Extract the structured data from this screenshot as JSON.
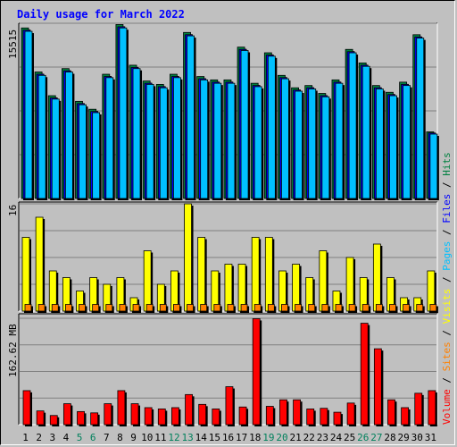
{
  "chart_data": {
    "type": "bar",
    "title": "Daily usage for March 2022",
    "categories": [
      "1",
      "2",
      "3",
      "4",
      "5",
      "6",
      "7",
      "8",
      "9",
      "10",
      "11",
      "12",
      "13",
      "14",
      "15",
      "16",
      "17",
      "18",
      "19",
      "20",
      "21",
      "22",
      "23",
      "24",
      "25",
      "26",
      "27",
      "28",
      "29",
      "30",
      "31"
    ],
    "weekend_days": [
      "5",
      "6",
      "12",
      "13",
      "19",
      "20",
      "26",
      "27"
    ],
    "grid": true,
    "panels": [
      {
        "name": "hits-files-pages",
        "max_label": "15515",
        "ylim": [
          0,
          15515
        ],
        "series": [
          {
            "name": "Hits",
            "color": "#008040",
            "values": [
              15100,
              11200,
              9100,
              11500,
              8600,
              7900,
              11000,
              15400,
              11800,
              10400,
              10100,
              11000,
              14700,
              10800,
              10500,
              10500,
              13400,
              10200,
              12900,
              10900,
              9800,
              10000,
              9300,
              10500,
              13200,
              12000,
              10000,
              9400,
              10300,
              14500,
              5900
            ]
          },
          {
            "name": "Files",
            "color": "#0000ff",
            "values": [
              14900,
              11000,
              8900,
              11300,
              8400,
              7700,
              10800,
              15200,
              11600,
              10200,
              9900,
              10800,
              14500,
              10600,
              10300,
              10300,
              13200,
              10000,
              12700,
              10700,
              9600,
              9800,
              9100,
              10300,
              13000,
              11800,
              9800,
              9200,
              10100,
              14300,
              5800
            ]
          },
          {
            "name": "Pages",
            "color": "#00c0ff",
            "values": [
              14800,
              10900,
              8800,
              11200,
              8300,
              7600,
              10700,
              15100,
              11500,
              10100,
              9800,
              10700,
              14400,
              10500,
              10200,
              10200,
              13100,
              9900,
              12600,
              10600,
              9500,
              9700,
              9000,
              10200,
              12900,
              11700,
              9700,
              9100,
              10000,
              14200,
              5700
            ]
          }
        ]
      },
      {
        "name": "visits-sites",
        "max_label": "16",
        "ylim": [
          0,
          16
        ],
        "series": [
          {
            "name": "Visits",
            "color": "#ffff00",
            "values": [
              11,
              14,
              6,
              5,
              3,
              5,
              4,
              5,
              2,
              9,
              4,
              6,
              16,
              11,
              6,
              7,
              7,
              11,
              11,
              6,
              7,
              5,
              9,
              3,
              8,
              5,
              10,
              5,
              2,
              2,
              6
            ]
          },
          {
            "name": "Sites",
            "color": "#ff8000",
            "values": [
              1,
              1,
              1,
              1,
              1,
              1,
              1,
              1,
              1,
              1,
              1,
              1,
              1,
              1,
              1,
              1,
              1,
              1,
              1,
              1,
              1,
              1,
              1,
              1,
              1,
              1,
              1,
              1,
              1,
              1,
              1
            ]
          }
        ]
      },
      {
        "name": "volume",
        "max_label": "162.62 MB",
        "ylim": [
          0,
          162.62
        ],
        "unit": "MB",
        "series": [
          {
            "name": "Volume",
            "color": "#ff0000",
            "values": [
              52,
              21,
              14,
              32,
              20,
              18,
              32,
              52,
              32,
              26,
              24,
              26,
              46,
              31,
              24,
              58,
              27,
              162,
              28,
              38,
              38,
              24,
              25,
              19,
              33,
              155,
              116,
              38,
              26,
              48,
              52
            ]
          }
        ]
      }
    ],
    "legend_right": [
      {
        "label": "Hits",
        "color": "#008040"
      },
      {
        "label": "Files",
        "color": "#0000ff"
      },
      {
        "label": "Pages",
        "color": "#00c0ff"
      },
      {
        "label": "Visits",
        "color": "#ffff00"
      },
      {
        "label": "Sites",
        "color": "#ff8000"
      },
      {
        "label": "Volume",
        "color": "#ff0000"
      }
    ],
    "colors": {
      "background": "#c0c0c0",
      "grid": "#808080",
      "title": "#0000ff",
      "weekday_label": "#000000",
      "weekend_label": "#00805c"
    }
  }
}
